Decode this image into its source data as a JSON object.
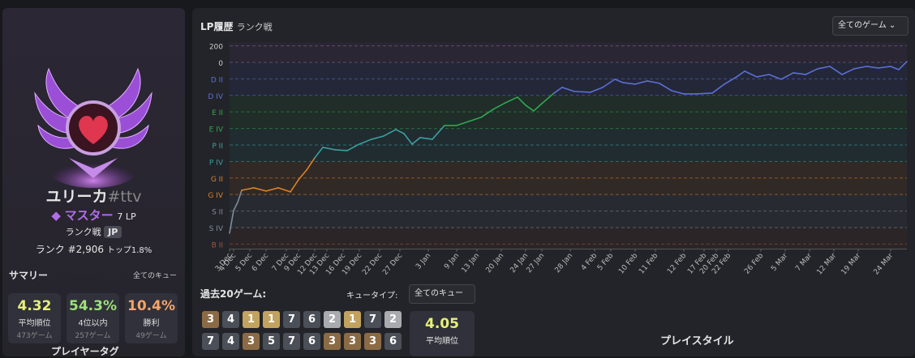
{
  "profile": {
    "name": "ユリーカ",
    "tag": "#ttv",
    "tier": "マスター",
    "lp": "7 LP",
    "queue": "ランク戦",
    "region": "JP",
    "rank": "ランク #2,906",
    "top": "トップ1.8%"
  },
  "summary": {
    "title": "サマリー",
    "filter": "全てのキュー",
    "stats": [
      {
        "value": "4.32",
        "label": "平均順位",
        "games": "473ゲーム"
      },
      {
        "value": "54.3%",
        "label": "4位以内",
        "games": "257ゲーム"
      },
      {
        "value": "10.4%",
        "label": "勝利",
        "games": "49ゲーム"
      }
    ],
    "next": "プレイヤータグ"
  },
  "chart_data": {
    "type": "line",
    "title": "LP履歴",
    "subtitle": "ランク戦",
    "dropdown": "全てのゲーム",
    "x": [
      0,
      1,
      2,
      3,
      6,
      9,
      12,
      15,
      17,
      19,
      21,
      23,
      26,
      29,
      32,
      35,
      38,
      41,
      43,
      45,
      47,
      50,
      53,
      56,
      59,
      62,
      65,
      68,
      71,
      73,
      75,
      77,
      80,
      82,
      85,
      89,
      92,
      95,
      97,
      100,
      103,
      106,
      109,
      112,
      115,
      119,
      122,
      125,
      127,
      130,
      133,
      136,
      139,
      142,
      145,
      148,
      151,
      154,
      157,
      160,
      163,
      165,
      167
    ],
    "values": [
      -2068,
      -1793,
      -1695,
      -1548,
      -1519,
      -1558,
      -1519,
      -1568,
      -1421,
      -1303,
      -1156,
      -1029,
      -1058,
      -1068,
      -990,
      -931,
      -892,
      -813,
      -862,
      -990,
      -911,
      -931,
      -764,
      -764,
      -715,
      -666,
      -568,
      -490,
      -421,
      -519,
      -588,
      -499,
      -372,
      -303,
      -352,
      -362,
      -303,
      -205,
      -245,
      -264,
      -225,
      -254,
      -343,
      -382,
      -382,
      -372,
      -264,
      -176,
      -107,
      -176,
      -147,
      -205,
      -127,
      -147,
      -78,
      -49,
      -147,
      -78,
      -49,
      -69,
      -49,
      -88,
      10
    ],
    "xlim": [
      0,
      167
    ],
    "ylim": [
      -2260,
      240
    ],
    "yticks": [
      200,
      0,
      {
        "value": -200,
        "label": "D II",
        "color": "#5b6fd6"
      },
      {
        "value": -400,
        "label": "D IV",
        "color": "#5b6fd6"
      },
      {
        "value": -600,
        "label": "E II",
        "color": "#2fa84f"
      },
      {
        "value": -800,
        "label": "E IV",
        "color": "#2fa84f"
      },
      {
        "value": -1000,
        "label": "P II",
        "color": "#3aa0a0"
      },
      {
        "value": -1200,
        "label": "P IV",
        "color": "#3aa0a0"
      },
      {
        "value": -1400,
        "label": "G II",
        "color": "#d9822b"
      },
      {
        "value": -1600,
        "label": "G IV",
        "color": "#d9822b"
      },
      {
        "value": -1800,
        "label": "S II",
        "color": "#7f8c99"
      },
      {
        "value": -2000,
        "label": "S IV",
        "color": "#7f8c99"
      },
      {
        "value": -2200,
        "label": "B II",
        "color": "#a0553c"
      }
    ],
    "xticks": [
      {
        "value": 0,
        "label": "3 Dec"
      },
      {
        "value": 1,
        "label": "4 Dec"
      },
      {
        "value": 5,
        "label": "5 Dec"
      },
      {
        "value": 9,
        "label": "6 Dec"
      },
      {
        "value": 14,
        "label": "7 Dec"
      },
      {
        "value": 17,
        "label": "9 Dec"
      },
      {
        "value": 21,
        "label": "12 Dec"
      },
      {
        "value": 24,
        "label": "13 Dec"
      },
      {
        "value": 28,
        "label": "16 Dec"
      },
      {
        "value": 32,
        "label": "19 Dec"
      },
      {
        "value": 37,
        "label": "22 Dec"
      },
      {
        "value": 42,
        "label": "27 Dec"
      },
      {
        "value": 49,
        "label": "3 Jan"
      },
      {
        "value": 56,
        "label": "9 Jan"
      },
      {
        "value": 61,
        "label": "13 Jan"
      },
      {
        "value": 67,
        "label": "20 Jan"
      },
      {
        "value": 73,
        "label": "24 Jan"
      },
      {
        "value": 77,
        "label": "27 Jan"
      },
      {
        "value": 84,
        "label": "28 Jan"
      },
      {
        "value": 90,
        "label": "4 Feb"
      },
      {
        "value": 94,
        "label": "5 Feb"
      },
      {
        "value": 100,
        "label": "10 Feb"
      },
      {
        "value": 105,
        "label": "11 Feb"
      },
      {
        "value": 112,
        "label": "12 Feb"
      },
      {
        "value": 117,
        "label": "17 Feb"
      },
      {
        "value": 120,
        "label": "20 Feb"
      },
      {
        "value": 123,
        "label": "22 Feb"
      },
      {
        "value": 131,
        "label": "26 Feb"
      },
      {
        "value": 137,
        "label": "5 Mar"
      },
      {
        "value": 143,
        "label": "7 Mar"
      },
      {
        "value": 149,
        "label": "12 Mar"
      },
      {
        "value": 155,
        "label": "19 Mar"
      },
      {
        "value": 163,
        "label": "24 Mar"
      }
    ],
    "grid": true
  },
  "recent": {
    "title": "過去20ゲーム:",
    "queue_label": "キュータイプ:",
    "queue_value": "全てのキュー",
    "placements": [
      3,
      4,
      1,
      1,
      7,
      6,
      2,
      1,
      7,
      2,
      7,
      4,
      3,
      5,
      7,
      6,
      3,
      3,
      3,
      6
    ],
    "average": "4.05",
    "average_label": "平均順位"
  },
  "playstyle": "プレイスタイル"
}
